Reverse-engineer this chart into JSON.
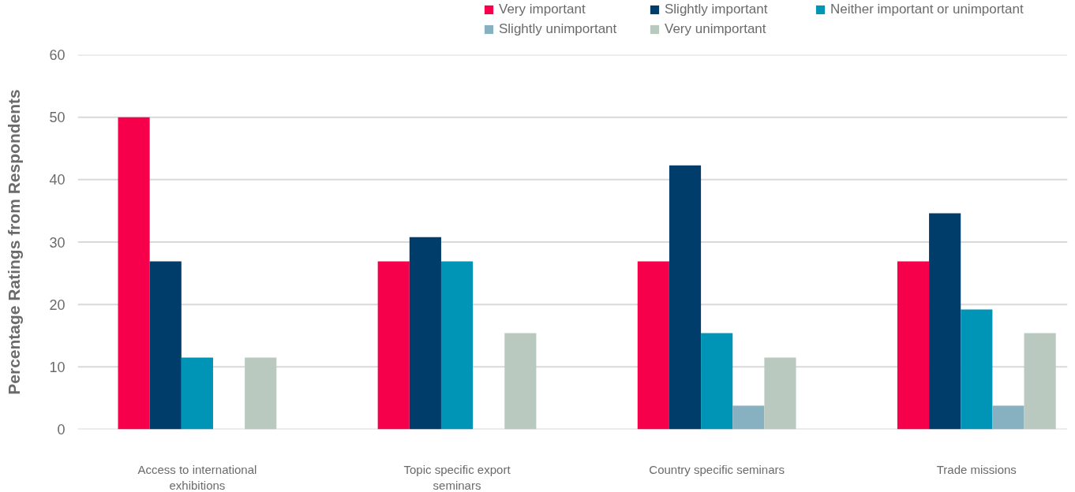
{
  "chart_data": {
    "type": "bar",
    "categories": [
      "Access to international exhibitions",
      "Topic specific export seminars",
      "Country specific seminars",
      "Trade missions"
    ],
    "series": [
      {
        "name": "Very important",
        "color": "#f7004b",
        "values": [
          50,
          26.9,
          26.9,
          26.9
        ]
      },
      {
        "name": "Slightly important",
        "color": "#003d6b",
        "values": [
          26.9,
          30.8,
          42.3,
          34.6
        ]
      },
      {
        "name": "Neither important or unimportant",
        "color": "#0094b6",
        "values": [
          11.5,
          26.9,
          15.4,
          19.2
        ]
      },
      {
        "name": "Slightly unimportant",
        "color": "#87b0c1",
        "values": [
          null,
          null,
          3.8,
          3.8
        ]
      },
      {
        "name": "Very unimportant",
        "color": "#b9c9bf",
        "values": [
          11.5,
          15.4,
          11.5,
          15.4
        ]
      }
    ],
    "ylabel": "Percentage Ratings from Respondents",
    "ylim": [
      0,
      60
    ],
    "yticks": [
      0,
      10,
      20,
      30,
      40,
      50,
      60
    ],
    "grid": "y",
    "legend": "top right"
  }
}
